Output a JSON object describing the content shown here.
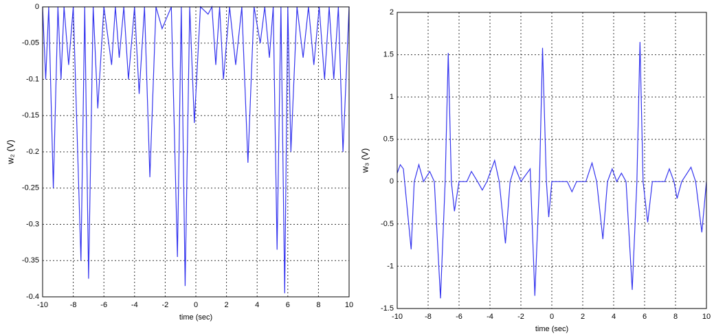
{
  "chart_data": [
    {
      "type": "line",
      "ylabel": "w₂ (V)",
      "xlabel": "time (sec)",
      "xlim": [
        -10,
        10
      ],
      "ylim": [
        -0.4,
        0
      ],
      "xticks": [
        -10,
        -8,
        -6,
        -4,
        -2,
        0,
        2,
        4,
        6,
        8,
        10
      ],
      "yticks": [
        0,
        -0.05,
        -0.1,
        -0.15,
        -0.2,
        -0.25,
        -0.3,
        -0.35,
        -0.4
      ],
      "grid": true,
      "x": [
        -10,
        -9.8,
        -9.6,
        -9.3,
        -9.0,
        -8.8,
        -8.6,
        -8.3,
        -8.0,
        -7.5,
        -7.25,
        -7.0,
        -6.7,
        -6.4,
        -6.0,
        -5.5,
        -5.25,
        -5.0,
        -4.7,
        -4.4,
        -4.0,
        -3.7,
        -3.35,
        -3.0,
        -2.6,
        -2.2,
        -1.6,
        -1.2,
        -0.95,
        -0.7,
        -0.4,
        -0.1,
        0.3,
        0.8,
        1.05,
        1.3,
        1.55,
        1.8,
        2.2,
        2.6,
        3.0,
        3.4,
        3.8,
        4.2,
        4.5,
        4.8,
        5.05,
        5.3,
        5.55,
        5.8,
        6.0,
        6.2,
        6.6,
        7.0,
        7.35,
        7.7,
        8.05,
        8.4,
        8.7,
        9.0,
        9.3,
        9.6,
        10
      ],
      "series": [
        {
          "name": "w2",
          "color": "#3333ee",
          "values": [
            0,
            -0.1,
            0,
            -0.25,
            0,
            -0.1,
            0,
            -0.08,
            0,
            -0.35,
            0,
            -0.375,
            0,
            -0.14,
            0,
            -0.08,
            0,
            -0.07,
            0,
            -0.1,
            0,
            -0.12,
            0,
            -0.235,
            0,
            -0.03,
            0,
            -0.345,
            0,
            -0.385,
            0,
            -0.16,
            0,
            -0.01,
            0,
            -0.08,
            0,
            -0.1,
            0,
            -0.08,
            0,
            -0.215,
            0,
            -0.05,
            0,
            -0.07,
            0,
            -0.335,
            0,
            -0.395,
            0,
            -0.2,
            0,
            -0.07,
            0,
            -0.08,
            0,
            -0.1,
            0,
            -0.1,
            0,
            -0.2,
            0
          ]
        }
      ]
    },
    {
      "type": "line",
      "ylabel": "w₃ (V)",
      "xlabel": "time (sec)",
      "xlim": [
        -10,
        10
      ],
      "ylim": [
        -1.5,
        2
      ],
      "xticks": [
        -10,
        -8,
        -6,
        -4,
        -2,
        0,
        2,
        4,
        6,
        8,
        10
      ],
      "yticks": [
        2,
        1.5,
        1,
        0.5,
        0,
        -0.5,
        -1,
        -1.5
      ],
      "grid": true,
      "x": [
        -10,
        -9.8,
        -9.6,
        -9.1,
        -8.9,
        -8.6,
        -8.3,
        -7.9,
        -7.6,
        -7.2,
        -6.9,
        -6.7,
        -6.5,
        -6.3,
        -6.0,
        -5.5,
        -5.2,
        -4.8,
        -4.5,
        -4.2,
        -3.7,
        -3.4,
        -3.0,
        -2.7,
        -2.4,
        -2.0,
        -1.4,
        -1.1,
        -0.8,
        -0.6,
        -0.35,
        -0.2,
        0,
        1.0,
        1.3,
        1.6,
        2.2,
        2.6,
        2.9,
        3.3,
        3.6,
        3.9,
        4.2,
        4.5,
        4.8,
        5.2,
        5.5,
        5.7,
        5.9,
        6.2,
        6.5,
        7.3,
        7.6,
        7.9,
        8.1,
        8.4,
        9.0,
        9.3,
        9.7,
        10
      ],
      "series": [
        {
          "name": "w3",
          "color": "#3333ee",
          "values": [
            0.1,
            0.2,
            0.15,
            -0.8,
            0,
            0.2,
            0,
            0.12,
            0,
            -1.38,
            0,
            1.52,
            0,
            -0.35,
            0,
            0,
            0.12,
            0,
            -0.1,
            0,
            0.25,
            0,
            -0.73,
            0,
            0.18,
            0,
            0.15,
            -1.35,
            0,
            1.58,
            0,
            -0.42,
            0,
            0,
            -0.12,
            0,
            0,
            0.22,
            0,
            -0.68,
            0,
            0.15,
            0,
            0.1,
            0,
            -1.28,
            0,
            1.65,
            0,
            -0.48,
            0,
            0,
            0.15,
            0,
            -0.2,
            0,
            0.17,
            0,
            -0.6,
            0
          ]
        }
      ]
    }
  ]
}
